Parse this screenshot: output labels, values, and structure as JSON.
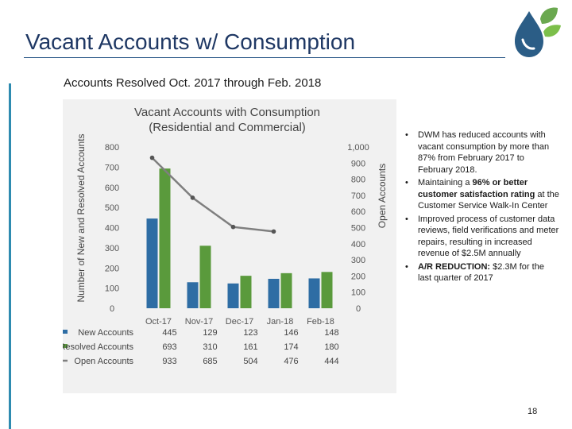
{
  "slide": {
    "title": "Vacant Accounts w/ Consumption",
    "subtitle": "Accounts Resolved Oct. 2017 through Feb. 2018",
    "page_number": "18"
  },
  "bullets": [
    {
      "text": "DWM has reduced accounts with vacant consumption by more than 87% from February 2017 to February 2018."
    },
    {
      "prefix": "Maintaining a ",
      "bold": "96% or better customer satisfaction rating",
      "suffix": " at the Customer Service Walk-In Center"
    },
    {
      "text": "Improved process of customer data reviews, field verifications and meter repairs, resulting in increased revenue of $2.5M annually"
    },
    {
      "bold": "A/R REDUCTION:",
      "suffix": " $2.3M for the last quarter of 2017"
    }
  ],
  "chart_data": {
    "type": "bar",
    "title": "Vacant Accounts with Consumption (Residential and Commercial)",
    "ylabel": "Number of New and Resolved Accounts",
    "y2label": "Open Accounts",
    "categories": [
      "Oct-17",
      "Nov-17",
      "Dec-17",
      "Jan-18",
      "Feb-18"
    ],
    "ylim": [
      0,
      800
    ],
    "y2lim": [
      0,
      1000
    ],
    "yticks": [
      "0",
      "100",
      "200",
      "300",
      "400",
      "500",
      "600",
      "700",
      "800"
    ],
    "y2ticks": [
      "0",
      "100",
      "200",
      "300",
      "400",
      "500",
      "600",
      "700",
      "800",
      "900",
      "1,000"
    ],
    "series": [
      {
        "name": "New Accounts",
        "type": "bar",
        "axis": "left",
        "color": "#2e6da4",
        "values": [
          445,
          129,
          123,
          146,
          148
        ]
      },
      {
        "name": "Resolved Accounts",
        "type": "bar",
        "axis": "left",
        "color": "#5a9a3c",
        "values": [
          693,
          310,
          161,
          174,
          180
        ]
      },
      {
        "name": "Open Accounts",
        "type": "line",
        "axis": "right",
        "color": "#7f7f7f",
        "values": [
          933,
          685,
          504,
          476,
          444
        ]
      }
    ],
    "table_values": [
      [
        "445",
        "129",
        "123",
        "146",
        "148"
      ],
      [
        "693",
        "310",
        "161",
        "174",
        "180"
      ],
      [
        "933",
        "685",
        "504",
        "476",
        "444"
      ]
    ]
  }
}
